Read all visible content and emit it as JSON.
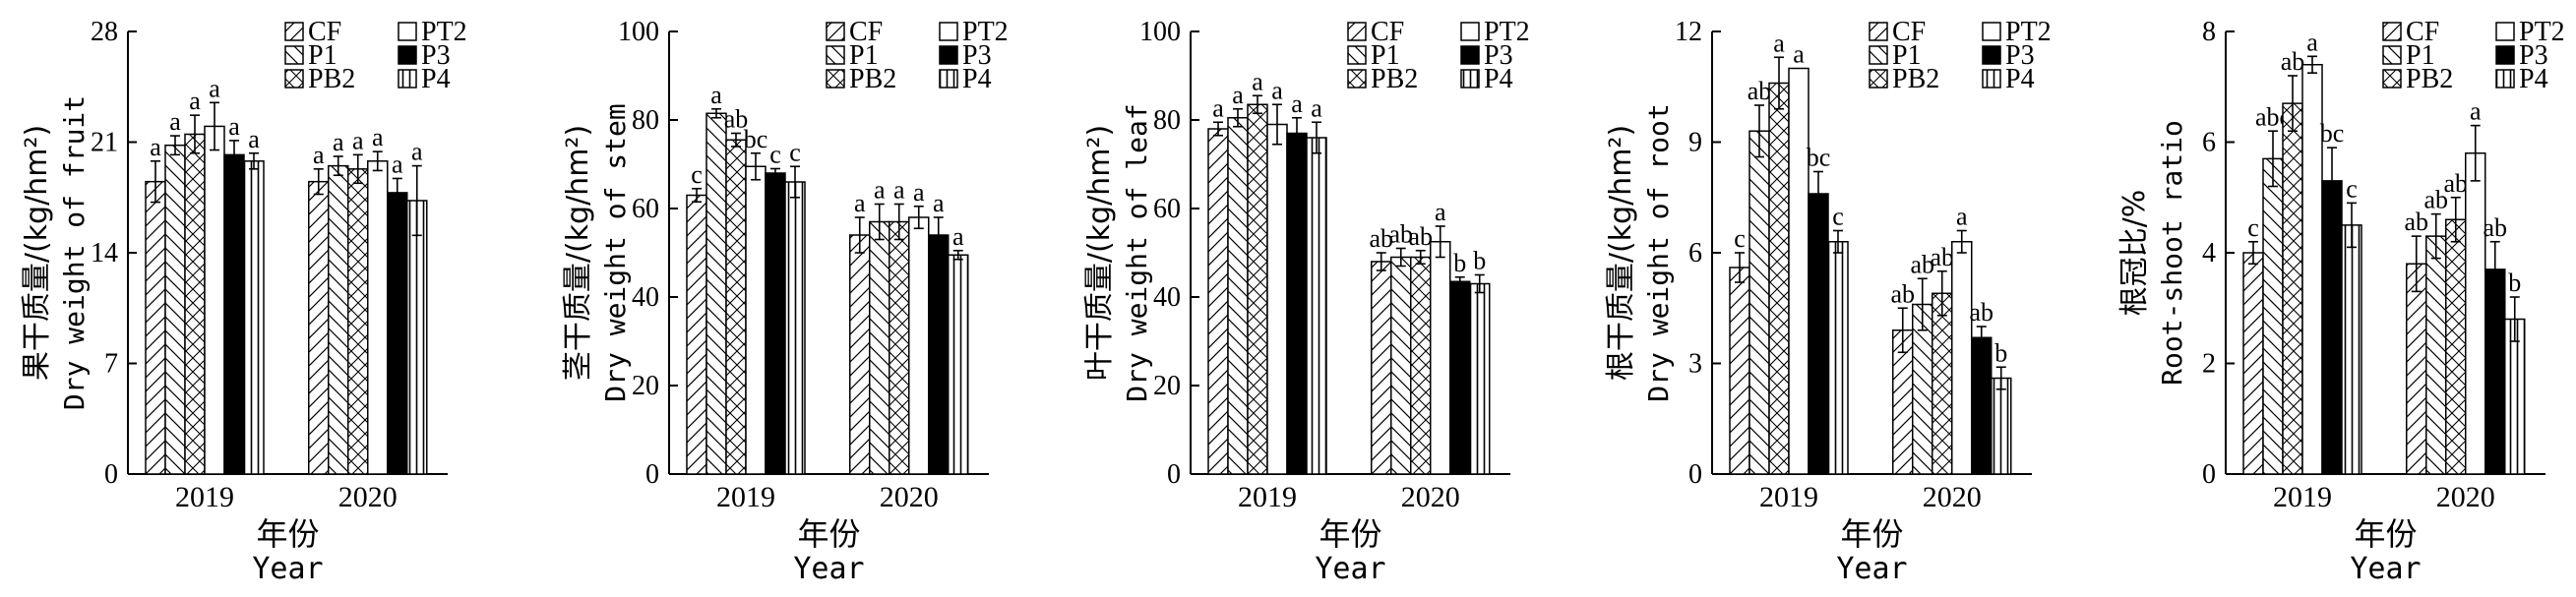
{
  "figure": {
    "year_axis_label_cn": "年份",
    "year_axis_label_en": "Year",
    "legend_labels": [
      "CF",
      "PT2",
      "P1",
      "P3",
      "PB2",
      "P4"
    ]
  },
  "chart_data": [
    {
      "type": "bar",
      "ylabel_cn": "果干质量/(kg/hm²)",
      "ylabel_en": "Dry weight of fruit",
      "xlabel_cn": "年份",
      "xlabel_en": "Year",
      "categories": [
        "2019",
        "2020"
      ],
      "ylim": [
        0,
        28
      ],
      "yticks": [
        0,
        7,
        14,
        21,
        28
      ],
      "legend": "top-right",
      "series": [
        {
          "name": "CF",
          "values": [
            18.5,
            18.5
          ],
          "errors": [
            1.3,
            0.8
          ],
          "letters": [
            "a",
            "a"
          ]
        },
        {
          "name": "P1",
          "values": [
            20.8,
            19.5
          ],
          "errors": [
            0.6,
            0.6
          ],
          "letters": [
            "a",
            "a"
          ]
        },
        {
          "name": "PB2",
          "values": [
            21.5,
            19.3
          ],
          "errors": [
            1.2,
            0.9
          ],
          "letters": [
            "a",
            "a"
          ]
        },
        {
          "name": "PT2",
          "values": [
            22.0,
            19.8
          ],
          "errors": [
            1.5,
            0.6
          ],
          "letters": [
            "a",
            "a"
          ]
        },
        {
          "name": "P3",
          "values": [
            20.2,
            17.8
          ],
          "errors": [
            0.9,
            0.9
          ],
          "letters": [
            "a",
            "a"
          ]
        },
        {
          "name": "P4",
          "values": [
            19.8,
            17.3
          ],
          "errors": [
            0.5,
            2.2
          ],
          "letters": [
            "a",
            "a"
          ]
        }
      ]
    },
    {
      "type": "bar",
      "ylabel_cn": "茎干质量/(kg/hm²)",
      "ylabel_en": "Dry weight of stem",
      "xlabel_cn": "年份",
      "xlabel_en": "Year",
      "categories": [
        "2019",
        "2020"
      ],
      "ylim": [
        0,
        100
      ],
      "yticks": [
        0,
        20,
        40,
        60,
        80,
        100
      ],
      "legend": "top-right",
      "series": [
        {
          "name": "CF",
          "values": [
            63,
            54
          ],
          "errors": [
            1.5,
            4
          ],
          "letters": [
            "c",
            "a"
          ]
        },
        {
          "name": "P1",
          "values": [
            81.5,
            57
          ],
          "errors": [
            1,
            4
          ],
          "letters": [
            "a",
            "a"
          ]
        },
        {
          "name": "PB2",
          "values": [
            75.5,
            57
          ],
          "errors": [
            1.5,
            4
          ],
          "letters": [
            "ab",
            "a"
          ]
        },
        {
          "name": "PT2",
          "values": [
            69.5,
            58
          ],
          "errors": [
            3,
            2.5
          ],
          "letters": [
            "bc",
            "a"
          ]
        },
        {
          "name": "P3",
          "values": [
            68,
            54
          ],
          "errors": [
            1,
            4
          ],
          "letters": [
            "c",
            "a"
          ]
        },
        {
          "name": "P4",
          "values": [
            66,
            49.5
          ],
          "errors": [
            3.5,
            1
          ],
          "letters": [
            "c",
            "a"
          ]
        }
      ]
    },
    {
      "type": "bar",
      "ylabel_cn": "叶干质量/(kg/hm²)",
      "ylabel_en": "Dry weight of leaf",
      "xlabel_cn": "年份",
      "xlabel_en": "Year",
      "categories": [
        "2019",
        "2020"
      ],
      "ylim": [
        0,
        100
      ],
      "yticks": [
        0,
        20,
        40,
        60,
        80,
        100
      ],
      "legend": "top-right",
      "series": [
        {
          "name": "CF",
          "values": [
            78,
            48
          ],
          "errors": [
            1.5,
            2
          ],
          "letters": [
            "a",
            "ab"
          ]
        },
        {
          "name": "P1",
          "values": [
            80.5,
            49
          ],
          "errors": [
            2,
            2
          ],
          "letters": [
            "a",
            "ab"
          ]
        },
        {
          "name": "PB2",
          "values": [
            83.5,
            49
          ],
          "errors": [
            2,
            1.5
          ],
          "letters": [
            "a",
            "ab"
          ]
        },
        {
          "name": "PT2",
          "values": [
            79,
            52.5
          ],
          "errors": [
            4.5,
            3.5
          ],
          "letters": [
            "a",
            "a"
          ]
        },
        {
          "name": "P3",
          "values": [
            77,
            43.5
          ],
          "errors": [
            3.5,
            1
          ],
          "letters": [
            "a",
            "b"
          ]
        },
        {
          "name": "P4",
          "values": [
            76,
            43
          ],
          "errors": [
            3.5,
            2
          ],
          "letters": [
            "a",
            "b"
          ]
        }
      ]
    },
    {
      "type": "bar",
      "ylabel_cn": "根干质量/(kg/hm²)",
      "ylabel_en": "Dry weight of root",
      "xlabel_cn": "年份",
      "xlabel_en": "Year",
      "categories": [
        "2019",
        "2020"
      ],
      "ylim": [
        0,
        12
      ],
      "yticks": [
        0,
        3,
        6,
        9,
        12
      ],
      "legend": "top-right",
      "series": [
        {
          "name": "CF",
          "values": [
            5.6,
            3.9
          ],
          "errors": [
            0.4,
            0.6
          ],
          "letters": [
            "c",
            "ab"
          ]
        },
        {
          "name": "P1",
          "values": [
            9.3,
            4.6
          ],
          "errors": [
            0.7,
            0.7
          ],
          "letters": [
            "ab",
            "ab"
          ]
        },
        {
          "name": "PB2",
          "values": [
            10.6,
            4.9
          ],
          "errors": [
            0.7,
            0.6
          ],
          "letters": [
            "a",
            "ab"
          ]
        },
        {
          "name": "PT2",
          "values": [
            11.0,
            6.3
          ],
          "errors": [
            0.0,
            0.3
          ],
          "letters": [
            "a",
            "a"
          ]
        },
        {
          "name": "P3",
          "values": [
            7.6,
            3.7
          ],
          "errors": [
            0.6,
            0.3
          ],
          "letters": [
            "bc",
            "ab"
          ]
        },
        {
          "name": "P4",
          "values": [
            6.3,
            2.6
          ],
          "errors": [
            0.3,
            0.3
          ],
          "letters": [
            "c",
            "b"
          ]
        }
      ]
    },
    {
      "type": "bar",
      "ylabel_cn": "根冠比/%",
      "ylabel_en": "Root-shoot ratio",
      "xlabel_cn": "年份",
      "xlabel_en": "Year",
      "categories": [
        "2019",
        "2020"
      ],
      "ylim": [
        0,
        8
      ],
      "yticks": [
        0,
        2,
        4,
        6,
        8
      ],
      "legend": "top-right",
      "series": [
        {
          "name": "CF",
          "values": [
            4.0,
            3.8
          ],
          "errors": [
            0.2,
            0.5
          ],
          "letters": [
            "c",
            "ab"
          ]
        },
        {
          "name": "P1",
          "values": [
            5.7,
            4.3
          ],
          "errors": [
            0.5,
            0.4
          ],
          "letters": [
            "abc",
            "ab"
          ]
        },
        {
          "name": "PB2",
          "values": [
            6.7,
            4.6
          ],
          "errors": [
            0.5,
            0.4
          ],
          "letters": [
            "ab",
            "ab"
          ]
        },
        {
          "name": "PT2",
          "values": [
            7.4,
            5.8
          ],
          "errors": [
            0.15,
            0.5
          ],
          "letters": [
            "a",
            "a"
          ]
        },
        {
          "name": "P3",
          "values": [
            5.3,
            3.7
          ],
          "errors": [
            0.6,
            0.5
          ],
          "letters": [
            "bc",
            "ab"
          ]
        },
        {
          "name": "P4",
          "values": [
            4.5,
            2.8
          ],
          "errors": [
            0.4,
            0.4
          ],
          "letters": [
            "c",
            "b"
          ]
        }
      ]
    }
  ]
}
